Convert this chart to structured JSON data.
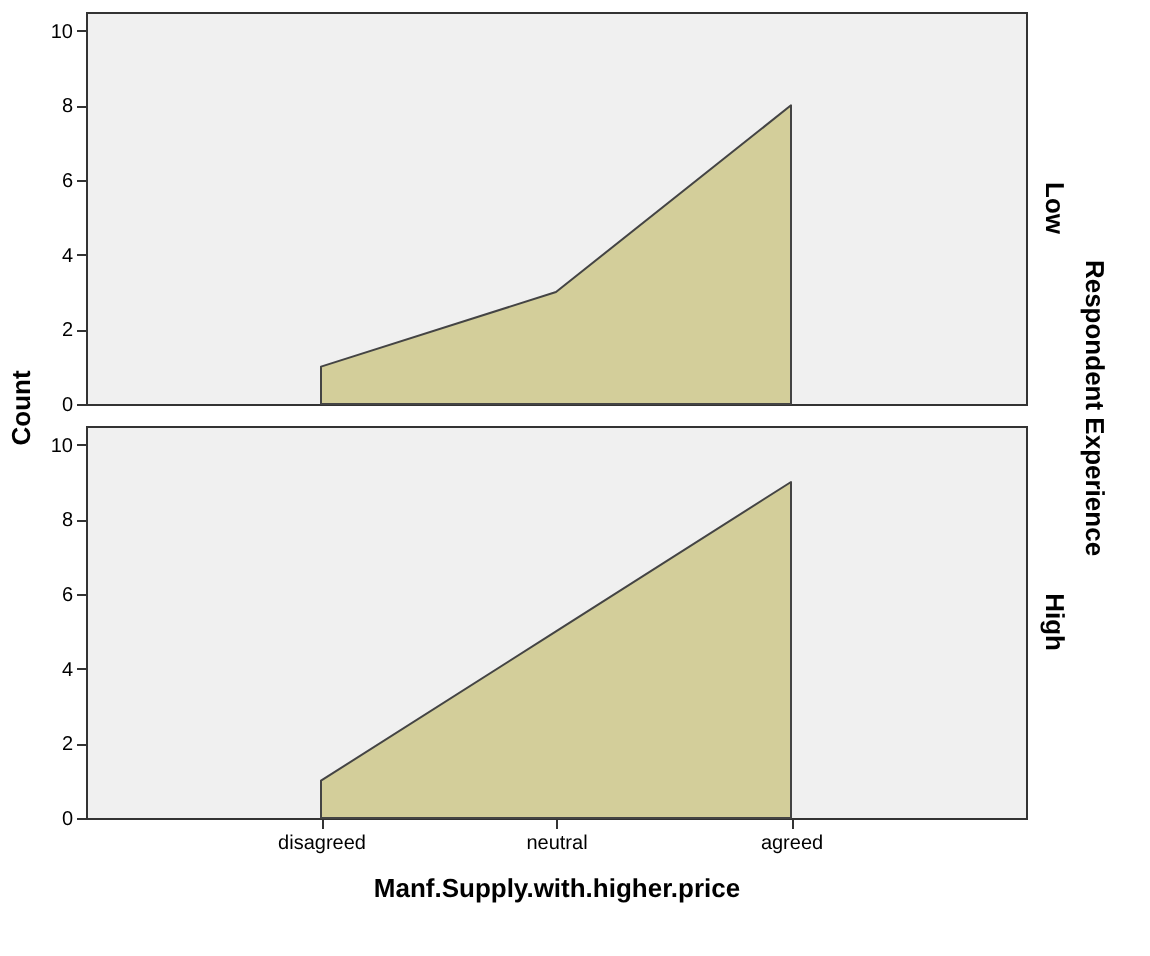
{
  "chart_data": [
    {
      "type": "area",
      "categories": [
        "disagreed",
        "neutral",
        "agreed"
      ],
      "ylabel": "Count",
      "y2label": "Respondent Experience",
      "tick_labels": "y",
      "ylim": [
        0,
        10.5
      ],
      "yticks": [
        0,
        2,
        4,
        6,
        8,
        10
      ],
      "grid": false,
      "series": [
        {
          "name": "Low",
          "color": "#d3ce9a",
          "values": [
            1,
            3,
            8
          ]
        }
      ]
    },
    {
      "type": "area",
      "categories": [
        "disagreed",
        "neutral",
        "agreed"
      ],
      "xlabel": "Manf.Supply.with.higher.price",
      "ylim": [
        0,
        10.5
      ],
      "yticks": [
        0,
        2,
        4,
        6,
        8,
        10
      ],
      "grid": false,
      "series": [
        {
          "name": "High",
          "color": "#d3ce9a",
          "values": [
            1,
            5,
            9
          ]
        }
      ]
    }
  ]
}
